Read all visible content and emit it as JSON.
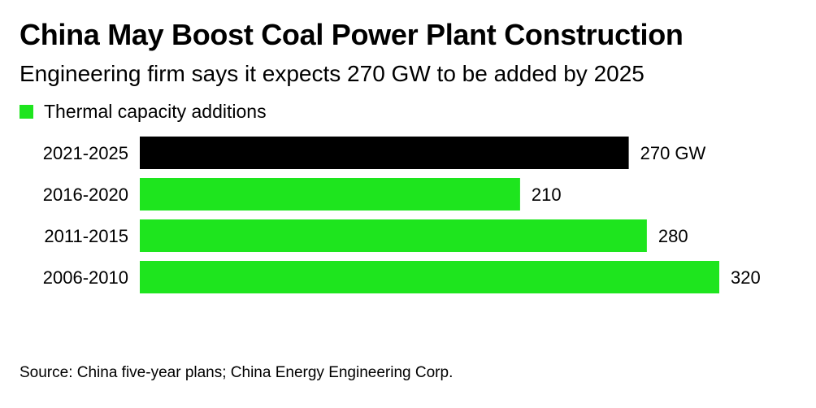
{
  "chart_data": {
    "type": "bar",
    "orientation": "horizontal",
    "title": "China May Boost Coal Power Plant Construction",
    "subtitle": "Engineering firm says it expects 270 GW to be added by 2025",
    "legend": {
      "placement": "top-left",
      "entries": [
        {
          "label": "Thermal capacity additions",
          "color": "#1EE51E"
        }
      ]
    },
    "categories": [
      "2021-2025",
      "2016-2020",
      "2011-2015",
      "2006-2010"
    ],
    "series": [
      {
        "name": "Thermal capacity additions",
        "values": [
          270,
          210,
          280,
          320
        ],
        "colors": [
          "#000000",
          "#1EE51E",
          "#1EE51E",
          "#1EE51E"
        ]
      }
    ],
    "value_labels": [
      "270 GW",
      "210",
      "280",
      "320"
    ],
    "xlim": [
      0,
      320
    ],
    "grid": false,
    "source": "Source: China five-year plans; China Energy Engineering Corp."
  }
}
